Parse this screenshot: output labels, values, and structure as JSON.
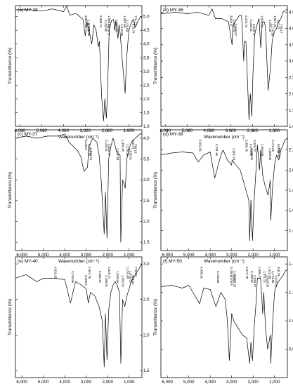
{
  "figure": {
    "x_axis_title": "Wavenumber (cm⁻¹)",
    "y_axis_title": "Transmittance (%)"
  },
  "chart_data": [
    {
      "type": "line",
      "panel_label": "(a) MY-28",
      "xlabel": "Wavenumber (cm⁻¹)",
      "ylabel": "Transmittance (%)",
      "xlim": [
        6200,
        400
      ],
      "ylim": [
        1.0,
        5.4
      ],
      "x_ticks": [
        "6,000",
        "5,000",
        "4,000",
        "3,000",
        "2,000",
        "1,000"
      ],
      "y_ticks": [
        "1.0",
        "1.5",
        "2.0",
        "2.5",
        "3.0",
        "3.5",
        "4.0",
        "4.5",
        "5.0"
      ],
      "grid": false,
      "series": [
        {
          "x": [
            6200,
            5500,
            5000,
            4500,
            4000,
            3850,
            3700,
            3500,
            3400,
            3100,
            3000,
            2925,
            2800,
            2700,
            2600,
            2500,
            2400,
            2350,
            2250,
            2159,
            2100,
            2030,
            1980,
            1900,
            1800,
            1700,
            1650,
            1600,
            1500,
            1450,
            1400,
            1300,
            1170,
            1100,
            1000,
            900,
            800,
            700,
            600,
            500,
            400
          ],
          "y": [
            5.25,
            5.25,
            5.2,
            5.28,
            5.18,
            5.38,
            5.05,
            5.1,
            5.1,
            4.9,
            4.3,
            4.8,
            4.4,
            4.0,
            4.7,
            4.5,
            3.9,
            4.1,
            2.1,
            1.2,
            2.0,
            1.3,
            2.2,
            4.5,
            4.85,
            4.9,
            4.5,
            4.85,
            4.2,
            4.7,
            4.4,
            3.4,
            2.2,
            3.5,
            4.5,
            4.75,
            4.9,
            4.6,
            4.8,
            4.95,
            5.0
          ]
        }
      ],
      "annotations": [
        "3,057.96",
        "2,942.77",
        "2,925.95",
        "2,388.73",
        "2,159.91",
        "2,029.77",
        "1,988.03",
        "1,657.58",
        "1,412.55",
        "1,281.68",
        "1,170.09",
        "875.74",
        "779.21"
      ]
    },
    {
      "type": "line",
      "panel_label": "(b) MY-36",
      "xlabel": "Wavenumber (cm⁻¹)",
      "ylabel": "Transmittance (%)",
      "xlim": [
        6200,
        400
      ],
      "ylim": [
        1.0,
        4.7
      ],
      "x_ticks": [
        "6,000",
        "5,000",
        "4,000",
        "3,000",
        "2,000",
        "1,000"
      ],
      "y_ticks": [
        "1.0",
        "1.5",
        "2.0",
        "2.5",
        "3.0",
        "3.5",
        "4.0",
        "4.5"
      ],
      "grid": false,
      "series": [
        {
          "x": [
            6200,
            5500,
            5000,
            4500,
            4000,
            3850,
            3700,
            3400,
            3100,
            2935,
            2900,
            2600,
            2500,
            2400,
            2380,
            2300,
            2159,
            2100,
            2030,
            1980,
            1900,
            1800,
            1700,
            1620,
            1550,
            1450,
            1400,
            1282,
            1174,
            1100,
            1000,
            900,
            800,
            700,
            600,
            500,
            400
          ],
          "y": [
            4.45,
            4.5,
            4.45,
            4.5,
            4.4,
            4.6,
            4.3,
            4.3,
            4.2,
            3.5,
            4.1,
            4.4,
            4.4,
            3.0,
            3.6,
            3.6,
            1.2,
            2.0,
            1.3,
            2.6,
            3.8,
            4.1,
            4.3,
            3.4,
            4.2,
            4.2,
            4.0,
            2.1,
            2.8,
            3.6,
            3.9,
            4.0,
            4.2,
            4.3,
            4.5,
            4.55,
            4.6
          ]
        }
      ],
      "annotations": [
        "3,068.8",
        "2,935.74",
        "2,868.67",
        "2,379.76",
        "2,159.91",
        "2,029.77",
        "1,653.51",
        "1,281.45",
        "1,174.39",
        "1,067.31",
        "917.77",
        "775.17"
      ]
    },
    {
      "type": "line",
      "panel_label": "(c) MY-37",
      "xlabel": "Wavenumber (cm⁻¹)",
      "ylabel": "Transmittance (%)",
      "xlim": [
        6300,
        400
      ],
      "ylim": [
        1.3,
        4.2
      ],
      "x_ticks": [
        "6,000",
        "5,000",
        "4,000",
        "3,000",
        "2,000",
        "1,000"
      ],
      "y_ticks": [
        "1.5",
        "2.0",
        "2.5",
        "3.0",
        "3.5",
        "4.0"
      ],
      "grid": false,
      "series": [
        {
          "x": [
            6300,
            5800,
            5300,
            4800,
            4300,
            4000,
            3800,
            3600,
            3400,
            3250,
            3100,
            2940,
            2870,
            2700,
            2500,
            2400,
            2300,
            2159,
            2100,
            2030,
            1950,
            1850,
            1750,
            1680,
            1600,
            1500,
            1420,
            1385,
            1300,
            1178,
            1100,
            1000,
            900,
            800,
            700,
            600,
            500,
            400
          ],
          "y": [
            4.0,
            4.05,
            4.0,
            4.05,
            4.05,
            4.1,
            3.9,
            3.8,
            3.7,
            3.55,
            3.2,
            3.3,
            3.8,
            4.0,
            3.9,
            3.6,
            3.0,
            1.7,
            2.7,
            1.6,
            3.5,
            3.8,
            4.0,
            3.9,
            3.7,
            3.6,
            3.6,
            1.5,
            3.0,
            2.8,
            3.5,
            3.75,
            3.9,
            3.95,
            4.0,
            4.05,
            4.1,
            4.1
          ]
        }
      ],
      "annotations": [
        "3,108.8",
        "2,940.76",
        "2,869.74",
        "2,159.91",
        "2,029.77",
        "1,627.58",
        "1,386.45",
        "1,178.38",
        "1,018.51",
        "910.77",
        "786.18"
      ]
    },
    {
      "type": "line",
      "panel_label": "(d) MY-38",
      "xlabel": "Wavenumber (cm⁻¹)",
      "ylabel": "Transmittance (%)",
      "xlim": [
        6300,
        400
      ],
      "ylim": [
        1.2,
        2.4
      ],
      "x_ticks": [
        "6,000",
        "5,000",
        "4,000",
        "3,000",
        "2,000",
        "1,000"
      ],
      "y_ticks": [
        "1.4",
        "1.6",
        "1.8",
        "2.0",
        "2.2"
      ],
      "grid": false,
      "series": [
        {
          "x": [
            6300,
            5800,
            5300,
            4800,
            4562,
            4300,
            4000,
            3790,
            3500,
            3400,
            3200,
            3000,
            2980,
            2800,
            2600,
            2400,
            2200,
            2159,
            2100,
            2030,
            1950,
            1850,
            1800,
            1700,
            1650,
            1550,
            1450,
            1300,
            1200,
            1172,
            1100,
            1000,
            900,
            800,
            700,
            600,
            500,
            400
          ],
          "y": [
            2.15,
            2.17,
            2.18,
            2.17,
            2.08,
            2.15,
            2.18,
            1.92,
            2.15,
            2.2,
            2.1,
            2.05,
            2.1,
            2.05,
            2.0,
            1.85,
            1.7,
            1.3,
            1.7,
            1.3,
            1.7,
            2.05,
            2.25,
            2.0,
            2.2,
            1.95,
            1.85,
            1.75,
            1.9,
            1.5,
            1.8,
            2.05,
            2.15,
            2.1,
            2.2,
            2.25,
            2.3,
            2.32
          ]
        }
      ],
      "annotations": [
        "4,562.81",
        "3,791.46",
        "2,982.74",
        "2,396.76",
        "2,179.86",
        "2,150.36",
        "2,029.77",
        "1,654.59",
        "1,308.34",
        "1,172.52",
        "912.45",
        "868.53"
      ]
    },
    {
      "type": "line",
      "panel_label": "(e) MY-40",
      "xlabel": "Wavenumber (cm⁻¹)",
      "ylabel": "Transmittance (%)",
      "xlim": [
        6300,
        400
      ],
      "ylim": [
        1.4,
        3.1
      ],
      "x_ticks": [
        "6,000",
        "5,000",
        "4,000",
        "3,000",
        "2,000",
        "1,000"
      ],
      "y_ticks": [
        "1.5",
        "2.0",
        "2.5",
        "3.0"
      ],
      "grid": false,
      "series": [
        {
          "x": [
            6300,
            5800,
            5300,
            5000,
            4500,
            4000,
            3733,
            3500,
            3200,
            3000,
            2900,
            2800,
            2600,
            2400,
            2250,
            2159,
            2100,
            2030,
            1950,
            1850,
            1750,
            1650,
            1550,
            1450,
            1382,
            1300,
            1200,
            1100,
            1000,
            900,
            800,
            700,
            600,
            500,
            400
          ],
          "y": [
            2.8,
            2.85,
            2.75,
            2.8,
            2.8,
            2.78,
            2.45,
            2.75,
            2.7,
            2.65,
            2.45,
            2.6,
            2.55,
            2.4,
            2.2,
            1.55,
            2.3,
            1.65,
            2.35,
            2.6,
            2.7,
            2.75,
            2.7,
            2.6,
            1.6,
            2.5,
            2.4,
            2.55,
            2.65,
            2.75,
            2.8,
            2.85,
            2.9,
            2.95,
            3.0
          ]
        }
      ],
      "annotations": [
        "4,531.95",
        "3,733.56",
        "3,108.8",
        "2,942.78",
        "2,450.41",
        "2,159.91",
        "2,029.77",
        "1,625.66",
        "1,382.52",
        "1,153.48",
        "1,018.52",
        "913.51",
        "775.27"
      ]
    },
    {
      "type": "line",
      "panel_label": "(f) MY-50",
      "xlabel": "Wavenumber (cm⁻¹)",
      "ylabel": "Transmittance (%)",
      "xlim": [
        6300,
        400
      ],
      "ylim": [
        0.6,
        1.45
      ],
      "x_ticks": [
        "6,000",
        "5,000",
        "4,000",
        "3,000",
        "2,000",
        "1,000"
      ],
      "y_ticks": [
        "0.8",
        "1.0",
        "1.2",
        "1.4"
      ],
      "grid": false,
      "series": [
        {
          "x": [
            6300,
            5800,
            5300,
            5000,
            4495,
            4300,
            4000,
            3733,
            3500,
            3300,
            3200,
            3106,
            3000,
            2900,
            2700,
            2500,
            2300,
            2159,
            2100,
            2030,
            1950,
            1850,
            1800,
            1650,
            1551,
            1500,
            1420,
            1320,
            1200,
            1174,
            1100,
            1000,
            900,
            800,
            700,
            600,
            500,
            400
          ],
          "y": [
            1.24,
            1.25,
            1.23,
            1.25,
            1.12,
            1.23,
            1.22,
            1.1,
            1.2,
            1.15,
            1.0,
            0.72,
            1.05,
            1.0,
            0.95,
            0.9,
            0.88,
            0.7,
            0.85,
            0.72,
            0.95,
            1.15,
            1.3,
            1.3,
            1.05,
            1.2,
            0.95,
            0.8,
            0.9,
            0.7,
            0.95,
            1.2,
            1.25,
            1.28,
            1.3,
            1.32,
            1.35,
            1.36
          ]
        }
      ],
      "annotations": [
        "4,495.31",
        "3,733.58",
        "3,108.8",
        "3,106.8",
        "2,956.87",
        "2,952.18",
        "2,377.78",
        "2,159.91",
        "2,029.77",
        "1,800.37",
        "1,551.51",
        "1,423.68",
        "1,322.38",
        "1,174.45",
        "1,023.51",
        "910.79"
      ]
    }
  ]
}
